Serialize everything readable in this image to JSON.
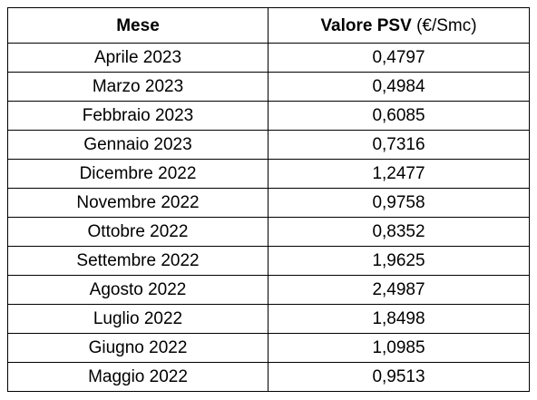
{
  "table": {
    "headers": {
      "month": "Mese",
      "value_bold": "Valore PSV",
      "value_unit": "(€/Smc)"
    },
    "rows": [
      {
        "month": "Aprile 2023",
        "value": "0,4797"
      },
      {
        "month": "Marzo 2023",
        "value": "0,4984"
      },
      {
        "month": "Febbraio 2023",
        "value": "0,6085"
      },
      {
        "month": "Gennaio 2023",
        "value": "0,7316"
      },
      {
        "month": "Dicembre 2022",
        "value": "1,2477"
      },
      {
        "month": "Novembre 2022",
        "value": "0,9758"
      },
      {
        "month": "Ottobre 2022",
        "value": "0,8352"
      },
      {
        "month": "Settembre 2022",
        "value": "1,9625"
      },
      {
        "month": "Agosto 2022",
        "value": "2,4987"
      },
      {
        "month": "Luglio 2022",
        "value": "1,8498"
      },
      {
        "month": "Giugno 2022",
        "value": "1,0985"
      },
      {
        "month": "Maggio 2022",
        "value": "0,9513"
      }
    ]
  }
}
